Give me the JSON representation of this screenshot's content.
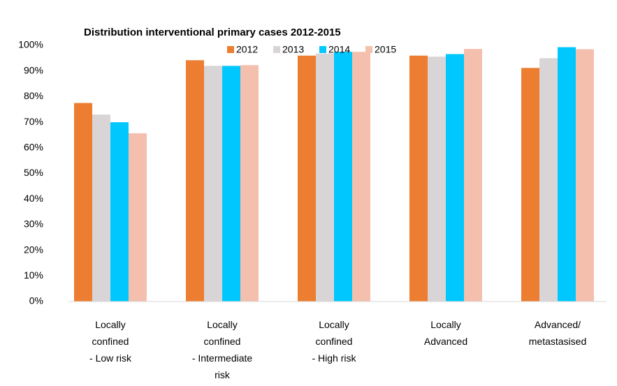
{
  "chart_data": {
    "type": "bar",
    "title": "Distribution interventional primary cases 2012-2015",
    "categories": [
      "Locally\nconfined\n- Low risk",
      "Locally\nconfined\n- Intermediate\nrisk",
      "Locally\nconfined\n- High risk",
      "Locally\nAdvanced",
      "Advanced/\nmetastasised"
    ],
    "series": [
      {
        "name": "2012",
        "color": "#ed7d31",
        "values": [
          77.5,
          94.2,
          96,
          96,
          91.2
        ]
      },
      {
        "name": "2013",
        "color": "#d9d5d6",
        "values": [
          73,
          92,
          96.8,
          95.6,
          95
        ]
      },
      {
        "name": "2014",
        "color": "#00c8ff",
        "values": [
          70,
          92,
          97.5,
          96.6,
          99.3
        ]
      },
      {
        "name": "2015",
        "color": "#f4c0ad",
        "values": [
          65.7,
          92.3,
          97.5,
          98.6,
          98.5
        ]
      }
    ],
    "ylim": [
      0,
      100
    ],
    "yticks": [
      {
        "value": 0,
        "label": "0%"
      },
      {
        "value": 10,
        "label": "10%"
      },
      {
        "value": 20,
        "label": "20%"
      },
      {
        "value": 30,
        "label": "30%"
      },
      {
        "value": 40,
        "label": "40%"
      },
      {
        "value": 50,
        "label": "50%"
      },
      {
        "value": 60,
        "label": "60%"
      },
      {
        "value": 70,
        "label": "70%"
      },
      {
        "value": 80,
        "label": "80%"
      },
      {
        "value": 90,
        "label": "90%"
      },
      {
        "value": 100,
        "label": "100%"
      }
    ],
    "grid": false,
    "legend": "top"
  }
}
